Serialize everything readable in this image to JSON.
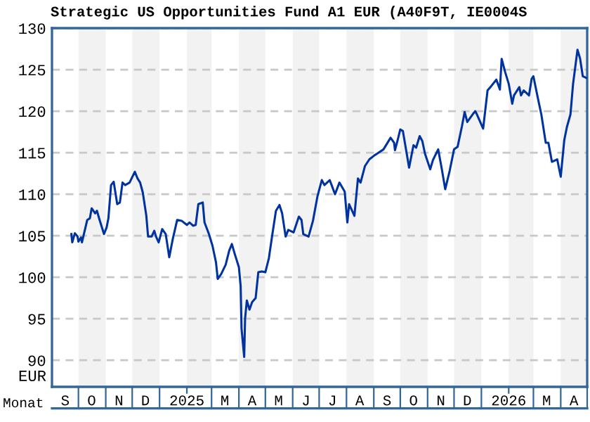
{
  "chart_data": {
    "type": "line",
    "title": "Strategic US Opportunities Fund A1 EUR (A40F9T, IE0004S",
    "xlabel": "Monat",
    "ylabel": "EUR",
    "x": [
      "2024-09-23",
      "2024-09-24",
      "2024-09-27",
      "2024-09-30",
      "2024-10-01",
      "2024-10-04",
      "2024-10-05",
      "2024-10-11",
      "2024-10-14",
      "2024-10-16",
      "2024-10-20",
      "2024-10-22",
      "2024-10-25",
      "2024-10-30",
      "2024-11-02",
      "2024-11-04",
      "2024-11-07",
      "2024-11-10",
      "2024-11-14",
      "2024-11-17",
      "2024-11-20",
      "2024-11-23",
      "2024-11-28",
      "2024-12-04",
      "2024-12-07",
      "2024-12-10",
      "2024-12-13",
      "2024-12-17",
      "2024-12-19",
      "2024-12-23",
      "2024-12-26",
      "2024-12-28",
      "2024-12-31",
      "2025-01-04",
      "2025-01-08",
      "2025-01-12",
      "2025-01-16",
      "2025-01-21",
      "2025-01-26",
      "2025-02-01",
      "2025-02-04",
      "2025-02-08",
      "2025-02-11",
      "2025-02-14",
      "2025-02-19",
      "2025-02-21",
      "2025-02-26",
      "2025-03-02",
      "2025-03-06",
      "2025-03-08",
      "2025-03-12",
      "2025-03-17",
      "2025-03-21",
      "2025-03-24",
      "2025-03-27",
      "2025-04-01",
      "2025-04-03",
      "2025-04-04",
      "2025-04-07",
      "2025-04-08",
      "2025-04-10",
      "2025-04-13",
      "2025-04-16",
      "2025-04-20",
      "2025-04-23",
      "2025-04-27",
      "2025-05-01",
      "2025-05-05",
      "2025-05-09",
      "2025-05-13",
      "2025-05-17",
      "2025-05-20",
      "2025-05-24",
      "2025-05-27",
      "2025-06-02",
      "2025-06-08",
      "2025-06-11",
      "2025-06-13",
      "2025-06-19",
      "2025-06-24",
      "2025-06-29",
      "2025-07-04",
      "2025-07-07",
      "2025-07-13",
      "2025-07-19",
      "2025-07-24",
      "2025-07-30",
      "2025-08-02",
      "2025-08-04",
      "2025-08-10",
      "2025-08-14",
      "2025-08-17",
      "2025-08-22",
      "2025-08-27",
      "2025-09-02",
      "2025-09-05",
      "2025-09-12",
      "2025-09-20",
      "2025-09-24",
      "2025-09-25",
      "2025-09-28",
      "2025-10-01",
      "2025-10-04",
      "2025-10-11",
      "2025-10-16",
      "2025-10-19",
      "2025-10-23",
      "2025-10-26",
      "2025-10-29",
      "2025-11-04",
      "2025-11-07",
      "2025-11-13",
      "2025-11-17",
      "2025-11-21",
      "2025-11-26",
      "2025-12-01",
      "2025-12-05",
      "2025-12-10",
      "2025-12-13",
      "2025-12-16",
      "2025-12-22",
      "2025-12-25",
      "2025-12-27",
      "2026-01-03",
      "2026-01-08",
      "2026-01-12",
      "2026-01-18",
      "2026-01-22",
      "2026-01-24",
      "2026-01-28",
      "2026-02-01",
      "2026-02-05",
      "2026-02-07",
      "2026-02-13",
      "2026-02-15",
      "2026-02-18",
      "2026-02-24",
      "2026-02-27",
      "2026-03-01",
      "2026-03-06",
      "2026-03-10",
      "2026-03-15",
      "2026-03-18",
      "2026-03-22",
      "2026-03-28",
      "2026-04-01",
      "2026-04-05",
      "2026-04-08",
      "2026-04-12",
      "2026-04-15",
      "2026-04-20",
      "2026-04-23",
      "2026-04-26",
      "2026-04-30"
    ],
    "series": [
      {
        "color": "#0033a0",
        "values": [
          105.2,
          104.2,
          105.3,
          104.9,
          104.3,
          104.8,
          104.2,
          106.9,
          107.1,
          108.3,
          107.7,
          108.0,
          106.9,
          105.2,
          106.0,
          107.1,
          111.1,
          111.5,
          108.8,
          109.0,
          111.4,
          111.1,
          111.4,
          112.7,
          111.9,
          111.4,
          110.2,
          107.4,
          104.9,
          104.9,
          105.6,
          104.9,
          104.2,
          105.8,
          105.2,
          102.4,
          104.6,
          106.9,
          106.8,
          106.3,
          106.6,
          106.2,
          106.3,
          108.8,
          109.0,
          106.6,
          105.2,
          103.8,
          101.8,
          99.8,
          100.4,
          101.5,
          103.2,
          104.0,
          102.9,
          101.2,
          98.9,
          93.8,
          90.4,
          95.0,
          97.2,
          96.1,
          97.0,
          97.5,
          100.6,
          100.7,
          100.6,
          102.3,
          105.2,
          108.0,
          108.7,
          107.7,
          104.9,
          105.7,
          105.4,
          107.3,
          106.9,
          105.2,
          104.9,
          106.8,
          109.7,
          111.7,
          111.1,
          111.7,
          110.0,
          111.4,
          110.3,
          106.6,
          108.8,
          107.4,
          111.9,
          111.4,
          113.4,
          114.2,
          114.7,
          114.9,
          115.4,
          116.8,
          116.2,
          115.3,
          116.5,
          117.8,
          117.6,
          113.2,
          115.9,
          115.6,
          117.0,
          116.4,
          114.9,
          113.0,
          114.1,
          115.4,
          113.1,
          110.6,
          112.8,
          115.4,
          115.7,
          118.2,
          119.9,
          118.7,
          119.6,
          120.0,
          119.6,
          117.9,
          122.5,
          123.0,
          123.8,
          122.6,
          126.3,
          124.7,
          123.3,
          120.9,
          121.9,
          122.9,
          121.9,
          122.5,
          121.9,
          123.9,
          124.2,
          121.6,
          119.6,
          116.2,
          116.2,
          113.9,
          114.2,
          112.1,
          116.5,
          118.1,
          119.6,
          123.3,
          127.4,
          126.3,
          124.2,
          124.0
        ]
      }
    ],
    "xlim": [
      "2024-09-01",
      "2026-05-01"
    ],
    "ylim": [
      86.8,
      130
    ],
    "xticks": [
      {
        "value": "2024-09-16",
        "label": "S"
      },
      {
        "value": "2024-10-16",
        "label": "O"
      },
      {
        "value": "2024-11-16",
        "label": "N"
      },
      {
        "value": "2024-12-16",
        "label": "D"
      },
      {
        "value": "2025-02-01",
        "label": "2025"
      },
      {
        "value": "2025-03-16",
        "label": "M"
      },
      {
        "value": "2025-04-16",
        "label": "A"
      },
      {
        "value": "2025-05-16",
        "label": "M"
      },
      {
        "value": "2025-06-16",
        "label": "J"
      },
      {
        "value": "2025-07-16",
        "label": "J"
      },
      {
        "value": "2025-08-16",
        "label": "A"
      },
      {
        "value": "2025-09-16",
        "label": "S"
      },
      {
        "value": "2025-10-16",
        "label": "O"
      },
      {
        "value": "2025-11-16",
        "label": "N"
      },
      {
        "value": "2025-12-16",
        "label": "D"
      },
      {
        "value": "2026-02-01",
        "label": "2026"
      },
      {
        "value": "2026-03-16",
        "label": "M"
      },
      {
        "value": "2026-04-16",
        "label": "A"
      }
    ],
    "yticks": [
      90,
      95,
      100,
      105,
      110,
      115,
      120,
      125,
      130
    ],
    "grid": "y",
    "legend": false,
    "marker": "none",
    "line_style": "solid",
    "bands": [
      {
        "axis": "x",
        "from": "2024-10-01",
        "to": "2024-11-01",
        "color": "#f2f2f2"
      },
      {
        "axis": "x",
        "from": "2024-12-01",
        "to": "2025-01-01",
        "color": "#f2f2f2"
      },
      {
        "axis": "x",
        "from": "2025-02-01",
        "to": "2025-03-01",
        "color": "#f2f2f2"
      },
      {
        "axis": "x",
        "from": "2025-04-01",
        "to": "2025-05-01",
        "color": "#f2f2f2"
      },
      {
        "axis": "x",
        "from": "2025-06-01",
        "to": "2025-07-01",
        "color": "#f2f2f2"
      },
      {
        "axis": "x",
        "from": "2025-08-01",
        "to": "2025-09-01",
        "color": "#f2f2f2"
      },
      {
        "axis": "x",
        "from": "2025-10-01",
        "to": "2025-11-01",
        "color": "#f2f2f2"
      },
      {
        "axis": "x",
        "from": "2025-12-01",
        "to": "2026-01-01",
        "color": "#f2f2f2"
      },
      {
        "axis": "x",
        "from": "2026-02-01",
        "to": "2026-03-01",
        "color": "#f2f2f2"
      },
      {
        "axis": "x",
        "from": "2026-04-01",
        "to": "2026-05-01",
        "color": "#f2f2f2"
      }
    ]
  }
}
